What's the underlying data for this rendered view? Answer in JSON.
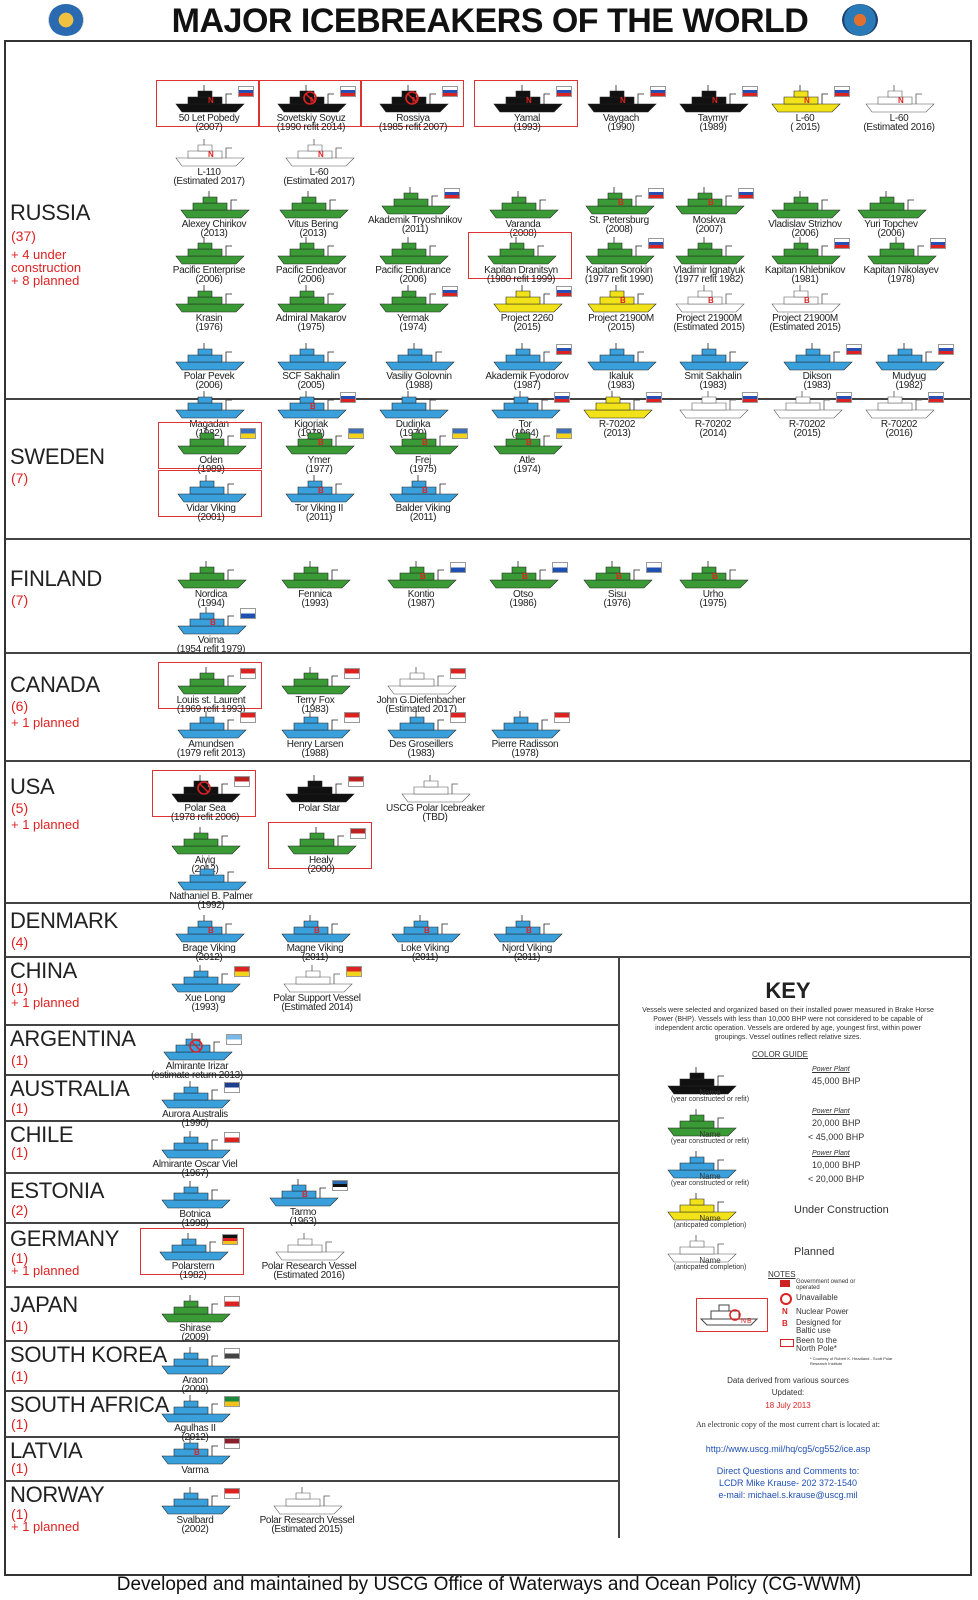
{
  "title": "MAJOR ICEBREAKERS OF THE WORLD",
  "footer": "Developed and maintained by USCG Office of Waterways and Ocean Policy (CG-WWM)",
  "colors": {
    "black": "#111111",
    "green": "#3a9a35",
    "blue": "#3aa0dc",
    "yellow": "#f2e21a",
    "outline": "#ffffff",
    "red": "#d22222"
  },
  "sections": [
    {
      "country": "RUSSIA",
      "count": "(37)",
      "notes": "+ 4 under\nconstruction\n+ 8 planned",
      "ships": [
        {
          "name": "50 Let Pobedy",
          "year": "(2007)",
          "color": "black",
          "flag": "ru",
          "pole": true,
          "mark": "N"
        },
        {
          "name": "Sovetskiy Soyuz",
          "year": "(1990 refit 2014)",
          "color": "black",
          "flag": "ru",
          "pole": true,
          "mark": "N",
          "unavailable": true
        },
        {
          "name": "Rossiya",
          "year": "(1985 refit 2007)",
          "color": "black",
          "flag": "ru",
          "pole": true,
          "mark": "N",
          "unavailable": true
        },
        {
          "name": "Yamal",
          "year": "(1993)",
          "color": "black",
          "flag": "ru",
          "pole": true,
          "mark": "N"
        },
        {
          "name": "Vaygach",
          "year": "(1990)",
          "color": "black",
          "flag": "ru",
          "mark": "N"
        },
        {
          "name": "Taymyr",
          "year": "(1989)",
          "color": "black",
          "flag": "ru",
          "mark": "N"
        },
        {
          "name": "L-60",
          "year": "( 2015)",
          "color": "yellow",
          "flag": "ru",
          "mark": "N"
        },
        {
          "name": "L-60",
          "year": "(Estimated 2016)",
          "color": "outline",
          "mark": "N"
        },
        {
          "name": "L-110",
          "year": "(Estimated 2017)",
          "color": "outline",
          "mark": "N"
        },
        {
          "name": "L-60",
          "year": "(Estimated 2017)",
          "color": "outline",
          "mark": "N"
        },
        {
          "name": "Alexey Chirikov",
          "year": "(2013)",
          "color": "green"
        },
        {
          "name": "Vitus Bering",
          "year": "(2013)",
          "color": "green"
        },
        {
          "name": "Akademik Tryoshnikov",
          "year": "(2011)",
          "color": "green",
          "flag": "ru"
        },
        {
          "name": "Varanda",
          "year": "(2008)",
          "color": "green"
        },
        {
          "name": "St. Petersburg",
          "year": "(2008)",
          "color": "green",
          "flag": "ru",
          "mark": "B"
        },
        {
          "name": "Moskva",
          "year": "(2007)",
          "color": "green",
          "flag": "ru",
          "mark": "B"
        },
        {
          "name": "Vladislav Strizhov",
          "year": "(2006)",
          "color": "green"
        },
        {
          "name": "Yuri Topchev",
          "year": "(2006)",
          "color": "green"
        },
        {
          "name": "Pacific Enterprise",
          "year": "(2006)",
          "color": "green"
        },
        {
          "name": "Pacific Endeavor",
          "year": "(2006)",
          "color": "green"
        },
        {
          "name": "Pacific Endurance",
          "year": "(2006)",
          "color": "green"
        },
        {
          "name": "Kapitan Dranitsyn",
          "year": "(1980 refit 1999)",
          "color": "green",
          "pole": true
        },
        {
          "name": "Kapitan Sorokin",
          "year": "(1977 refit 1990)",
          "color": "green",
          "flag": "ru"
        },
        {
          "name": "Vladimir Ignatyuk",
          "year": "(1977 refit 1982)",
          "color": "green"
        },
        {
          "name": "Kapitan Khlebnikov",
          "year": "(1981)",
          "color": "green",
          "flag": "ru"
        },
        {
          "name": "Kapitan Nikolayev",
          "year": "(1978)",
          "color": "green",
          "flag": "ru"
        },
        {
          "name": "Krasin",
          "year": "(1976)",
          "color": "green"
        },
        {
          "name": "Admiral Makarov",
          "year": "(1975)",
          "color": "green"
        },
        {
          "name": "Yermak",
          "year": "(1974)",
          "color": "green",
          "flag": "ru"
        },
        {
          "name": "Project 2260",
          "year": "(2015)",
          "color": "yellow",
          "flag": "ru"
        },
        {
          "name": "Project 21900M",
          "year": "(2015)",
          "color": "yellow",
          "mark": "B"
        },
        {
          "name": "Project 21900M",
          "year": "(Estimated 2015)",
          "color": "outline",
          "mark": "B"
        },
        {
          "name": "Project 21900M",
          "year": "(Estimated 2015)",
          "color": "outline",
          "mark": "B"
        },
        {
          "name": "Polar Pevek",
          "year": "(2006)",
          "color": "blue"
        },
        {
          "name": "SCF Sakhalin",
          "year": "(2005)",
          "color": "blue"
        },
        {
          "name": "Vasiliy Golovnin",
          "year": "(1988)",
          "color": "blue"
        },
        {
          "name": "Akademik Fyodorov",
          "year": "(1987)",
          "color": "blue",
          "flag": "ru"
        },
        {
          "name": "Ikaluk",
          "year": "(1983)",
          "color": "blue"
        },
        {
          "name": "Smit Sakhalin",
          "year": "(1983)",
          "color": "blue"
        },
        {
          "name": "Dikson",
          "year": "(1983)",
          "color": "blue",
          "flag": "ru"
        },
        {
          "name": "Mudyug",
          "year": "(1982)",
          "color": "blue",
          "flag": "ru"
        },
        {
          "name": "Magadan",
          "year": "(1982)",
          "color": "blue"
        },
        {
          "name": "Kigoriak",
          "year": "(1978)",
          "color": "blue",
          "flag": "ru",
          "mark": "B"
        },
        {
          "name": "Dudinka",
          "year": "(1970)",
          "color": "blue"
        },
        {
          "name": "Tor",
          "year": "(1964)",
          "color": "blue",
          "flag": "ru"
        },
        {
          "name": "R-70202",
          "year": "(2013)",
          "color": "yellow",
          "flag": "ru"
        },
        {
          "name": "R-70202",
          "year": "(2014)",
          "color": "outline",
          "flag": "ru"
        },
        {
          "name": "R-70202",
          "year": "(2015)",
          "color": "outline",
          "flag": "ru"
        },
        {
          "name": "R-70202",
          "year": "(2016)",
          "color": "outline",
          "flag": "ru"
        }
      ]
    },
    {
      "country": "SWEDEN",
      "count": "(7)",
      "notes": "",
      "ships": [
        {
          "name": "Oden",
          "year": "(1989)",
          "color": "green",
          "flag": "se",
          "pole": true
        },
        {
          "name": "Ymer",
          "year": "(1977)",
          "color": "green",
          "flag": "se",
          "mark": "B"
        },
        {
          "name": "Frej",
          "year": "(1975)",
          "color": "green",
          "flag": "se",
          "mark": "B"
        },
        {
          "name": "Atle",
          "year": "(1974)",
          "color": "green",
          "flag": "se",
          "mark": "B"
        },
        {
          "name": "Vidar Viking",
          "year": "(2001)",
          "color": "blue",
          "pole": true
        },
        {
          "name": "Tor Viking II",
          "year": "(2011)",
          "color": "blue",
          "mark": "B"
        },
        {
          "name": "Balder Viking",
          "year": "(2011)",
          "color": "blue",
          "mark": "B"
        }
      ]
    },
    {
      "country": "FINLAND",
      "count": "(7)",
      "notes": "",
      "ships": [
        {
          "name": "Nordica",
          "year": "(1994)",
          "color": "green"
        },
        {
          "name": "Fennica",
          "year": "(1993)",
          "color": "green"
        },
        {
          "name": "Kontio",
          "year": "(1987)",
          "color": "green",
          "flag": "fi",
          "mark": "B"
        },
        {
          "name": "Otso",
          "year": "(1986)",
          "color": "green",
          "flag": "fi",
          "mark": "B"
        },
        {
          "name": "Sisu",
          "year": "(1976)",
          "color": "green",
          "flag": "fi",
          "mark": "B"
        },
        {
          "name": "Urho",
          "year": "(1975)",
          "color": "green",
          "mark": "B"
        },
        {
          "name": "Voima",
          "year": "(1954 refit 1979)",
          "color": "blue",
          "flag": "fi",
          "mark": "B"
        }
      ]
    },
    {
      "country": "CANADA",
      "count": "(6)",
      "notes": "+ 1 planned",
      "ships": [
        {
          "name": "Louis st. Laurent",
          "year": "(1969 refit 1993)",
          "color": "green",
          "flag": "ca",
          "pole": true
        },
        {
          "name": "Terry Fox",
          "year": "(1983)",
          "color": "green",
          "flag": "ca"
        },
        {
          "name": "John G.Diefenbacher",
          "year": "(Estimated 2017)",
          "color": "outline",
          "flag": "ca"
        },
        {
          "name": "Amundsen",
          "year": "(1979 refit 2013)",
          "color": "blue",
          "flag": "ca"
        },
        {
          "name": "Henry Larsen",
          "year": "(1988)",
          "color": "blue",
          "flag": "ca"
        },
        {
          "name": "Des Groseillers",
          "year": "(1983)",
          "color": "blue",
          "flag": "ca"
        },
        {
          "name": "Pierre Radisson",
          "year": "(1978)",
          "color": "blue",
          "flag": "ca"
        }
      ]
    },
    {
      "country": "USA",
      "count": "(5)",
      "notes": "+ 1 planned",
      "ships": [
        {
          "name": "Polar Sea",
          "year": "(1978 refit 2006)",
          "color": "black",
          "flag": "us",
          "pole": true,
          "unavailable": true
        },
        {
          "name": "Polar Star",
          "year": "",
          "color": "black",
          "flag": "us"
        },
        {
          "name": "USCG Polar Icebreaker",
          "year": "(TBD)",
          "color": "outline"
        },
        {
          "name": "Aivig",
          "year": "(2012)",
          "color": "green"
        },
        {
          "name": "Healy",
          "year": "(2000)",
          "color": "green",
          "flag": "us",
          "pole": true
        },
        {
          "name": "Nathaniel B. Palmer",
          "year": "(1992)",
          "color": "blue"
        }
      ]
    },
    {
      "country": "DENMARK",
      "count": "(4)",
      "notes": "",
      "ships": [
        {
          "name": "Brage Viking",
          "year": "(2012)",
          "color": "blue",
          "mark": "B"
        },
        {
          "name": "Magne Viking",
          "year": "(2011)",
          "color": "blue",
          "mark": "B"
        },
        {
          "name": "Loke Viking",
          "year": "(2011)",
          "color": "blue",
          "mark": "B"
        },
        {
          "name": "Njord Viking",
          "year": "(2011)",
          "color": "blue",
          "mark": "B"
        }
      ]
    },
    {
      "country": "CHINA",
      "count": "(1)",
      "notes": "+ 1 planned",
      "ships": [
        {
          "name": "Xue Long",
          "year": "(1993)",
          "color": "blue",
          "flag": "cn"
        },
        {
          "name": "Polar Support Vessel",
          "year": "(Estimated 2014)",
          "color": "outline",
          "flag": "cn"
        }
      ]
    },
    {
      "country": "ARGENTINA",
      "count": "(1)",
      "notes": "",
      "ships": [
        {
          "name": "Almirante Irizar",
          "year": "(estimate return 2013)",
          "color": "blue",
          "flag": "ar",
          "unavailable": true
        }
      ]
    },
    {
      "country": "AUSTRALIA",
      "count": "(1)",
      "notes": "",
      "ships": [
        {
          "name": "Aurora Australis",
          "year": "(1990)",
          "color": "blue",
          "flag": "au"
        }
      ]
    },
    {
      "country": "CHILE",
      "count": "(1)",
      "notes": "",
      "ships": [
        {
          "name": "Almirante Oscar Viel",
          "year": "(1967)",
          "color": "blue",
          "flag": "cl"
        }
      ]
    },
    {
      "country": "ESTONIA",
      "count": "(2)",
      "notes": "",
      "ships": [
        {
          "name": "Botnica",
          "year": "(1998)",
          "color": "blue"
        },
        {
          "name": "Tarmo",
          "year": "(1963)",
          "color": "blue",
          "flag": "ee",
          "mark": "B"
        }
      ]
    },
    {
      "country": "GERMANY",
      "count": "(1)",
      "notes": "+ 1 planned",
      "ships": [
        {
          "name": "Polarstern",
          "year": "(1982)",
          "color": "blue",
          "flag": "de",
          "pole": true
        },
        {
          "name": "Polar Research Vessel",
          "year": "(Estimated 2016)",
          "color": "outline"
        }
      ]
    },
    {
      "country": "JAPAN",
      "count": "(1)",
      "notes": "",
      "ships": [
        {
          "name": "Shirase",
          "year": "(2009)",
          "color": "green",
          "flag": "jp"
        }
      ]
    },
    {
      "country": "SOUTH KOREA",
      "count": "(1)",
      "notes": "",
      "ships": [
        {
          "name": "Araon",
          "year": "(2009)",
          "color": "blue",
          "flag": "kr"
        }
      ]
    },
    {
      "country": "SOUTH AFRICA",
      "count": "(1)",
      "notes": "",
      "ships": [
        {
          "name": "Agulhas II",
          "year": "(2012)",
          "color": "blue",
          "flag": "za"
        }
      ]
    },
    {
      "country": "LATVIA",
      "count": "(1)",
      "notes": "",
      "ships": [
        {
          "name": "Varma",
          "year": "",
          "color": "blue",
          "flag": "lv",
          "mark": "B"
        }
      ]
    },
    {
      "country": "NORWAY",
      "count": "(1)",
      "notes": "+ 1 planned",
      "ships": [
        {
          "name": "Svalbard",
          "year": "(2002)",
          "color": "blue",
          "flag": "no"
        },
        {
          "name": "Polar Research Vessel",
          "year": "(Estimated 2015)",
          "color": "outline"
        }
      ]
    }
  ],
  "key": {
    "title": "KEY",
    "description": "Vessels were selected and organized based on their installed power measured in Brake Horse Power (BHP). Vessels with less than 10,000 BHP were not considered to be capable of independent arctic operation. Vessels are ordered by age, youngest first, within power groupings. Vessel outlines reflect relative sizes.",
    "color_guide_label": "COLOR GUIDE",
    "entries": [
      {
        "color": "black",
        "name": "Name",
        "sub": "(year constructed or refit)",
        "plant": "Power Plant",
        "v1": "45,000 BHP",
        "v2": ""
      },
      {
        "color": "green",
        "name": "Name",
        "sub": "(year constructed or refit)",
        "plant": "Power Plant",
        "v1": "20,000 BHP",
        "v2": "< 45,000 BHP"
      },
      {
        "color": "blue",
        "name": "Name",
        "sub": "(year constructed or refit)",
        "plant": "Power Plant",
        "v1": "10,000 BHP",
        "v2": "< 20,000 BHP"
      },
      {
        "color": "yellow",
        "name": "Name",
        "sub": "(anticpated completion)",
        "plant": "",
        "v1": "Under Construction",
        "v2": ""
      },
      {
        "color": "outline",
        "name": "Name",
        "sub": "(anticpated completion)",
        "plant": "",
        "v1": "Planned",
        "v2": ""
      }
    ],
    "notes_label": "NOTES",
    "notes": {
      "gov": "Government owned or operated",
      "unavailable": "Unavailable",
      "nuclear": "Nuclear Power",
      "baltic": "Designed for Baltic use",
      "pole": "Been to the North Pole*",
      "courtesy": "* Courtesy of Robert K. Headland - Scott Polar Research Institute"
    },
    "derived": "Data derived from various sources",
    "updated_label": "Updated:",
    "updated": "18 July 2013",
    "electronic": "An electronic copy of the most current chart is located at:",
    "url": "http://www.uscg.mil/hq/cg5/cg552/ice.asp",
    "direct": "Direct Questions and Comments to:",
    "contact": "LCDR Mike Krause- 202 372-1540",
    "email": "e-mail: michael.s.krause@uscg.mil"
  }
}
